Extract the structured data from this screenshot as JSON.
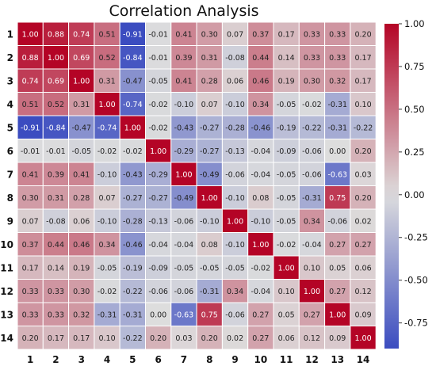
{
  "chart_data": {
    "type": "heatmap",
    "title": "Correlation Analysis",
    "xlabel": "",
    "ylabel": "",
    "labels": [
      "1",
      "2",
      "3",
      "4",
      "5",
      "6",
      "7",
      "8",
      "9",
      "10",
      "11",
      "12",
      "13",
      "14"
    ],
    "values": [
      [
        1.0,
        0.88,
        0.74,
        0.51,
        -0.91,
        -0.01,
        0.41,
        0.3,
        0.07,
        0.37,
        0.17,
        0.33,
        0.33,
        0.2
      ],
      [
        0.88,
        1.0,
        0.69,
        0.52,
        -0.84,
        -0.01,
        0.39,
        0.31,
        -0.08,
        0.44,
        0.14,
        0.33,
        0.33,
        0.17
      ],
      [
        0.74,
        0.69,
        1.0,
        0.31,
        -0.47,
        -0.05,
        0.41,
        0.28,
        0.06,
        0.46,
        0.19,
        0.3,
        0.32,
        0.17
      ],
      [
        0.51,
        0.52,
        0.31,
        1.0,
        -0.74,
        -0.02,
        -0.1,
        0.07,
        -0.1,
        0.34,
        -0.05,
        -0.02,
        -0.31,
        0.1
      ],
      [
        -0.91,
        -0.84,
        -0.47,
        -0.74,
        1.0,
        -0.02,
        -0.43,
        -0.27,
        -0.28,
        -0.46,
        -0.19,
        -0.22,
        -0.31,
        -0.22
      ],
      [
        -0.01,
        -0.01,
        -0.05,
        -0.02,
        -0.02,
        1.0,
        -0.29,
        -0.27,
        -0.13,
        -0.04,
        -0.09,
        -0.06,
        0.0,
        0.2
      ],
      [
        0.41,
        0.39,
        0.41,
        -0.1,
        -0.43,
        -0.29,
        1.0,
        -0.49,
        -0.06,
        -0.04,
        -0.05,
        -0.06,
        -0.63,
        0.03
      ],
      [
        0.3,
        0.31,
        0.28,
        0.07,
        -0.27,
        -0.27,
        -0.49,
        1.0,
        -0.1,
        0.08,
        -0.05,
        -0.31,
        0.75,
        0.2
      ],
      [
        0.07,
        -0.08,
        0.06,
        -0.1,
        -0.28,
        -0.13,
        -0.06,
        -0.1,
        1.0,
        -0.1,
        -0.05,
        0.34,
        -0.06,
        0.02
      ],
      [
        0.37,
        0.44,
        0.46,
        0.34,
        -0.46,
        -0.04,
        -0.04,
        0.08,
        -0.1,
        1.0,
        -0.02,
        -0.04,
        0.27,
        0.27
      ],
      [
        0.17,
        0.14,
        0.19,
        -0.05,
        -0.19,
        -0.09,
        -0.05,
        -0.05,
        -0.05,
        -0.02,
        1.0,
        0.1,
        0.05,
        0.06
      ],
      [
        0.33,
        0.33,
        0.3,
        -0.02,
        -0.22,
        -0.06,
        -0.06,
        -0.31,
        0.34,
        -0.04,
        0.1,
        1.0,
        0.27,
        0.12
      ],
      [
        0.33,
        0.33,
        0.32,
        -0.31,
        -0.31,
        0.0,
        -0.63,
        0.75,
        -0.06,
        0.27,
        0.05,
        0.27,
        1.0,
        0.09
      ],
      [
        0.2,
        0.17,
        0.17,
        0.1,
        -0.22,
        0.2,
        0.03,
        0.2,
        0.02,
        0.27,
        0.06,
        0.12,
        0.09,
        1.0
      ]
    ],
    "colormap": "coolwarm",
    "vmin": -0.9,
    "vmax": 1.0,
    "colorbar_ticks": [
      "1.00",
      "0.75",
      "0.50",
      "0.25",
      "0.00",
      "-0.25",
      "-0.50",
      "-0.75"
    ],
    "colors": {
      "low": "#3b4cc0",
      "mid": "#dddddd",
      "high": "#b40426"
    }
  }
}
